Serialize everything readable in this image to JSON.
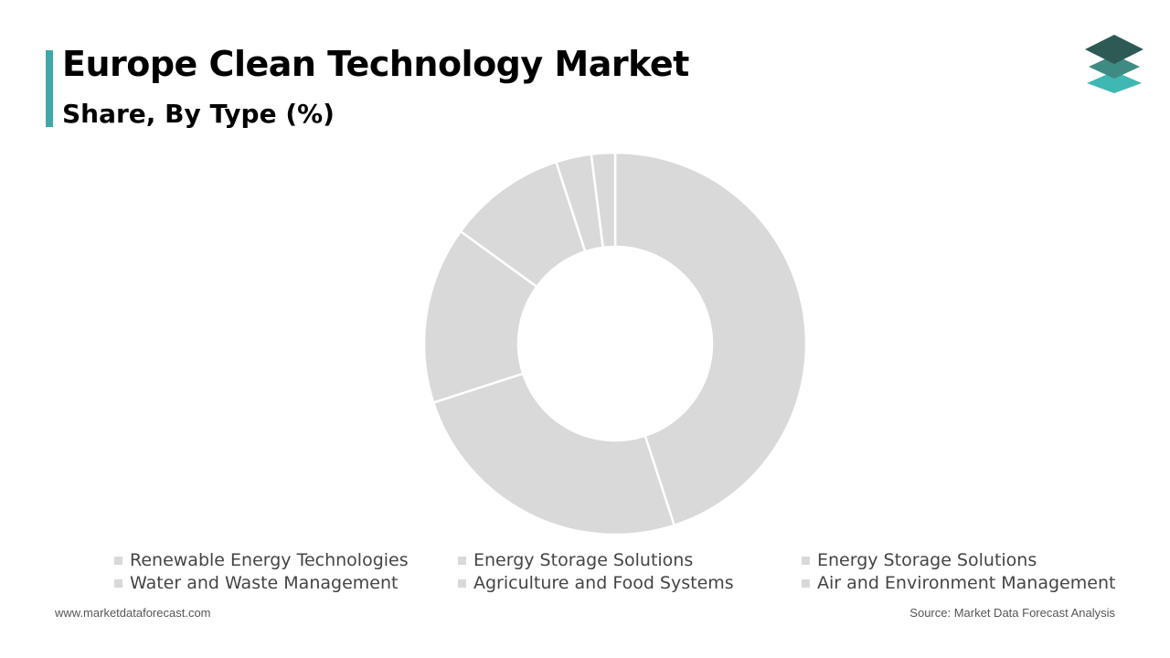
{
  "header": {
    "title": "Europe Clean Technology Market",
    "subtitle": "Share, By Type (%)"
  },
  "logo": {
    "icon": "stacked-layers-icon"
  },
  "chart_data": {
    "type": "pie",
    "style": "donut",
    "title": "Europe Clean Technology Market",
    "subtitle": "Share, By Type (%)",
    "categories": [
      "Renewable Energy Technologies",
      "Energy Storage Solutions",
      "Energy Storage Solutions",
      "Water and Waste Management",
      "Agriculture and Food Systems",
      "Air and Environment Management"
    ],
    "values": [
      45,
      25,
      15,
      10,
      3,
      2
    ],
    "unit": "%",
    "slice_color": "#d9d9d9",
    "separator_color": "#ffffff",
    "legend_placement": "bottom"
  },
  "footer": {
    "website": "www.marketdataforecast.com",
    "source": "Source: Market Data Forecast Analysis"
  }
}
